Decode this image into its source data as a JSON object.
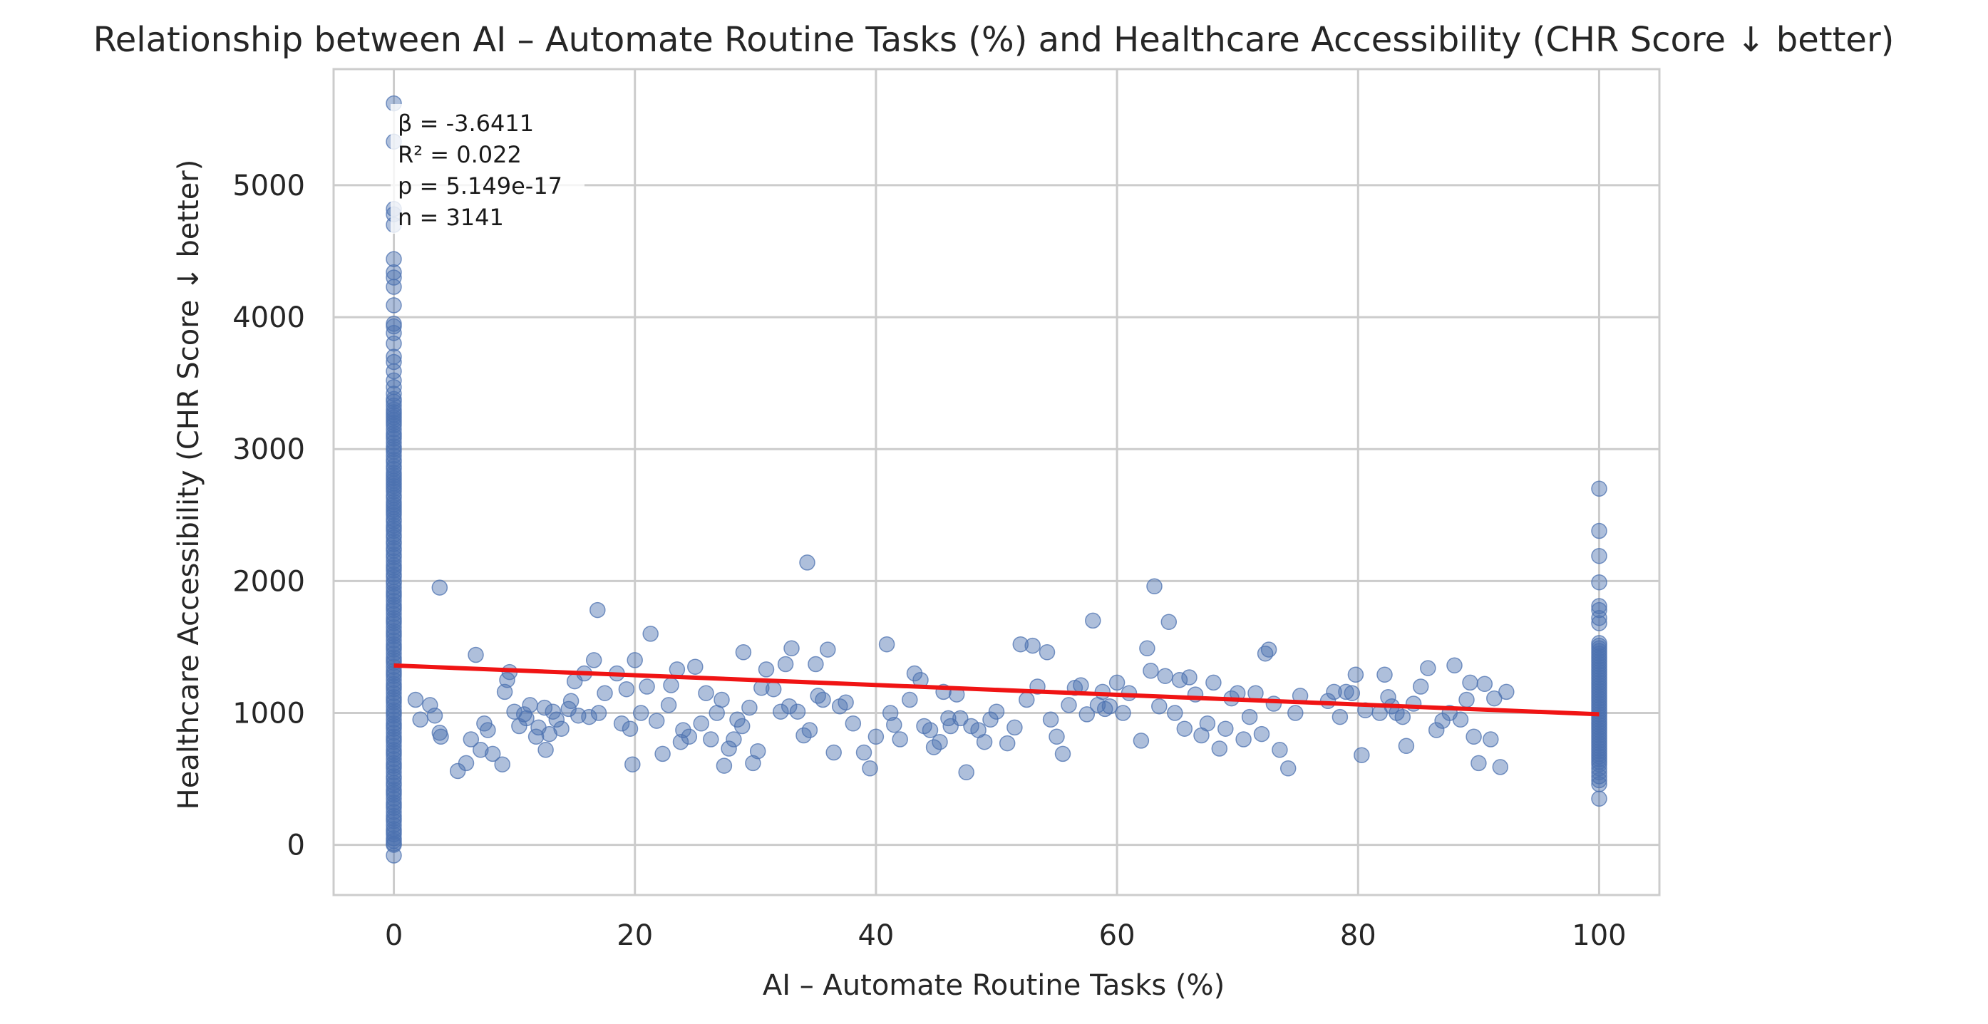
{
  "chart_data": {
    "type": "scatter",
    "title": "Relationship between AI – Automate Routine Tasks (%) and Healthcare Accessibility (CHR Score ↓ better)",
    "xlabel": "AI – Automate Routine Tasks (%)",
    "ylabel": "Healthcare Accessibility (CHR Score ↓ better)",
    "xlim": [
      -5,
      105
    ],
    "ylim": [
      -380,
      5880
    ],
    "xticks": [
      "0",
      "20",
      "40",
      "60",
      "80",
      "100"
    ],
    "yticks": [
      "0",
      "1000",
      "2000",
      "3000",
      "4000",
      "5000"
    ],
    "grid": true,
    "stats": [
      "β = -3.6411",
      "R² = 0.022",
      "p = 5.149e-17",
      "n = 3141"
    ],
    "regression": {
      "x": [
        0,
        100
      ],
      "y": [
        1360,
        990
      ],
      "color": "#f01414"
    },
    "point_color": "#4c72b0",
    "points": {
      "x0_y": [
        5620,
        5330,
        4820,
        4780,
        4700,
        4440,
        4340,
        4300,
        4230,
        4090,
        3950,
        3930,
        3880,
        3800,
        3700,
        3660,
        3590,
        3520,
        3470,
        3420,
        3380,
        3360,
        3330,
        3300,
        3280,
        3260,
        3240,
        3220,
        3200,
        3180,
        3150,
        3120,
        3100,
        3080,
        3050,
        3020,
        3000,
        2980,
        2950,
        2920,
        2900,
        2870,
        2850,
        2820,
        2800,
        2780,
        2760,
        2740,
        2720,
        2700,
        2680,
        2650,
        2630,
        2600,
        2580,
        2560,
        2540,
        2520,
        2500,
        2470,
        2450,
        2420,
        2400,
        2380,
        2350,
        2330,
        2300,
        2280,
        2250,
        2230,
        2200,
        2180,
        2150,
        2120,
        2100,
        2080,
        2050,
        2030,
        2000,
        1980,
        1950,
        1920,
        1900,
        1880,
        1850,
        1820,
        1800,
        1780,
        1750,
        1720,
        1700,
        1680,
        1650,
        1620,
        1600,
        1580,
        1550,
        1520,
        1500,
        1480,
        1450,
        1420,
        1400,
        1380,
        1350,
        1320,
        1300,
        1280,
        1250,
        1220,
        1200,
        1180,
        1150,
        1120,
        1100,
        1080,
        1050,
        1020,
        1000,
        980,
        950,
        920,
        900,
        880,
        850,
        820,
        800,
        780,
        750,
        720,
        700,
        680,
        650,
        620,
        600,
        580,
        550,
        520,
        500,
        470,
        450,
        420,
        400,
        380,
        350,
        320,
        300,
        280,
        250,
        220,
        200,
        180,
        150,
        120,
        100,
        80,
        50,
        30,
        10,
        0,
        -80
      ],
      "x100_y": [
        2700,
        2380,
        2190,
        1990,
        1810,
        1780,
        1720,
        1680,
        1530,
        1510,
        1490,
        1470,
        1450,
        1430,
        1410,
        1390,
        1370,
        1350,
        1330,
        1310,
        1290,
        1270,
        1250,
        1230,
        1210,
        1190,
        1170,
        1150,
        1130,
        1110,
        1090,
        1070,
        1050,
        1030,
        1010,
        990,
        970,
        950,
        930,
        910,
        890,
        870,
        850,
        830,
        810,
        790,
        770,
        750,
        730,
        710,
        690,
        670,
        650,
        630,
        610,
        580,
        550,
        520,
        490,
        460,
        350
      ],
      "mid": [
        [
          1.8,
          1100
        ],
        [
          2.2,
          950
        ],
        [
          3.0,
          1060
        ],
        [
          3.4,
          980
        ],
        [
          3.8,
          850
        ],
        [
          3.9,
          820
        ],
        [
          3.8,
          1950
        ],
        [
          5.3,
          560
        ],
        [
          6.0,
          620
        ],
        [
          6.4,
          800
        ],
        [
          6.8,
          1440
        ],
        [
          7.2,
          720
        ],
        [
          7.5,
          920
        ],
        [
          7.8,
          870
        ],
        [
          8.2,
          690
        ],
        [
          9.0,
          610
        ],
        [
          9.2,
          1160
        ],
        [
          9.4,
          1250
        ],
        [
          9.6,
          1310
        ],
        [
          10.0,
          1010
        ],
        [
          10.4,
          900
        ],
        [
          10.8,
          990
        ],
        [
          11.0,
          960
        ],
        [
          11.3,
          1060
        ],
        [
          11.8,
          820
        ],
        [
          12.0,
          890
        ],
        [
          12.5,
          1040
        ],
        [
          12.6,
          720
        ],
        [
          12.9,
          840
        ],
        [
          13.2,
          1010
        ],
        [
          13.5,
          950
        ],
        [
          13.9,
          880
        ],
        [
          14.5,
          1030
        ],
        [
          14.7,
          1090
        ],
        [
          15.0,
          1240
        ],
        [
          15.3,
          980
        ],
        [
          15.8,
          1300
        ],
        [
          16.2,
          970
        ],
        [
          16.6,
          1400
        ],
        [
          16.9,
          1780
        ],
        [
          17.0,
          1000
        ],
        [
          17.5,
          1150
        ],
        [
          18.5,
          1300
        ],
        [
          18.9,
          920
        ],
        [
          19.3,
          1180
        ],
        [
          19.6,
          880
        ],
        [
          19.8,
          610
        ],
        [
          20.0,
          1400
        ],
        [
          20.5,
          1000
        ],
        [
          21.0,
          1200
        ],
        [
          21.3,
          1600
        ],
        [
          21.8,
          940
        ],
        [
          22.3,
          690
        ],
        [
          22.8,
          1060
        ],
        [
          23.0,
          1210
        ],
        [
          23.5,
          1330
        ],
        [
          23.8,
          780
        ],
        [
          24.0,
          870
        ],
        [
          24.5,
          820
        ],
        [
          25.0,
          1350
        ],
        [
          25.5,
          920
        ],
        [
          25.9,
          1150
        ],
        [
          26.3,
          800
        ],
        [
          26.8,
          1000
        ],
        [
          27.2,
          1100
        ],
        [
          27.4,
          600
        ],
        [
          27.8,
          730
        ],
        [
          28.2,
          800
        ],
        [
          28.5,
          950
        ],
        [
          28.9,
          900
        ],
        [
          29.0,
          1460
        ],
        [
          29.5,
          1040
        ],
        [
          29.8,
          620
        ],
        [
          30.2,
          710
        ],
        [
          30.5,
          1190
        ],
        [
          30.9,
          1330
        ],
        [
          31.5,
          1180
        ],
        [
          32.1,
          1010
        ],
        [
          32.5,
          1370
        ],
        [
          32.8,
          1050
        ],
        [
          33.0,
          1490
        ],
        [
          33.5,
          1010
        ],
        [
          34.0,
          830
        ],
        [
          34.3,
          2140
        ],
        [
          34.5,
          870
        ],
        [
          35.0,
          1370
        ],
        [
          35.2,
          1130
        ],
        [
          35.6,
          1100
        ],
        [
          36.0,
          1480
        ],
        [
          36.5,
          700
        ],
        [
          37.0,
          1050
        ],
        [
          37.5,
          1080
        ],
        [
          38.1,
          920
        ],
        [
          39.0,
          700
        ],
        [
          39.5,
          580
        ],
        [
          40.0,
          820
        ],
        [
          40.9,
          1520
        ],
        [
          41.2,
          1000
        ],
        [
          41.5,
          910
        ],
        [
          42.0,
          800
        ],
        [
          42.8,
          1100
        ],
        [
          43.2,
          1300
        ],
        [
          43.7,
          1250
        ],
        [
          44.0,
          900
        ],
        [
          44.5,
          870
        ],
        [
          44.8,
          740
        ],
        [
          45.3,
          780
        ],
        [
          45.6,
          1160
        ],
        [
          46.0,
          960
        ],
        [
          46.2,
          900
        ],
        [
          46.7,
          1140
        ],
        [
          47.0,
          960
        ],
        [
          47.5,
          550
        ],
        [
          47.9,
          900
        ],
        [
          48.5,
          870
        ],
        [
          49.0,
          780
        ],
        [
          49.5,
          950
        ],
        [
          50.0,
          1010
        ],
        [
          50.9,
          770
        ],
        [
          51.5,
          890
        ],
        [
          52.0,
          1520
        ],
        [
          52.5,
          1100
        ],
        [
          53.0,
          1510
        ],
        [
          53.4,
          1200
        ],
        [
          54.2,
          1460
        ],
        [
          54.5,
          950
        ],
        [
          55.0,
          820
        ],
        [
          55.5,
          690
        ],
        [
          56.0,
          1060
        ],
        [
          56.5,
          1190
        ],
        [
          57.0,
          1210
        ],
        [
          57.5,
          990
        ],
        [
          58.0,
          1700
        ],
        [
          58.4,
          1060
        ],
        [
          58.8,
          1160
        ],
        [
          59.0,
          1030
        ],
        [
          59.4,
          1050
        ],
        [
          60.0,
          1230
        ],
        [
          60.5,
          1000
        ],
        [
          61.0,
          1150
        ],
        [
          62.0,
          790
        ],
        [
          62.5,
          1490
        ],
        [
          62.8,
          1320
        ],
        [
          63.1,
          1960
        ],
        [
          63.5,
          1050
        ],
        [
          64.0,
          1280
        ],
        [
          64.3,
          1690
        ],
        [
          64.8,
          1000
        ],
        [
          65.2,
          1250
        ],
        [
          65.6,
          880
        ],
        [
          66.0,
          1270
        ],
        [
          66.5,
          1140
        ],
        [
          67.0,
          830
        ],
        [
          67.5,
          920
        ],
        [
          68.0,
          1230
        ],
        [
          68.5,
          730
        ],
        [
          69.0,
          880
        ],
        [
          69.5,
          1110
        ],
        [
          70.0,
          1150
        ],
        [
          70.5,
          800
        ],
        [
          71.0,
          970
        ],
        [
          71.5,
          1150
        ],
        [
          72.0,
          840
        ],
        [
          72.3,
          1450
        ],
        [
          72.6,
          1480
        ],
        [
          73.0,
          1070
        ],
        [
          73.5,
          720
        ],
        [
          74.2,
          580
        ],
        [
          74.8,
          1000
        ],
        [
          75.2,
          1130
        ],
        [
          77.5,
          1090
        ],
        [
          78.0,
          1160
        ],
        [
          78.5,
          970
        ],
        [
          79.0,
          1160
        ],
        [
          79.5,
          1150
        ],
        [
          79.8,
          1290
        ],
        [
          80.3,
          680
        ],
        [
          80.6,
          1020
        ],
        [
          81.8,
          1000
        ],
        [
          82.2,
          1290
        ],
        [
          82.5,
          1120
        ],
        [
          82.8,
          1050
        ],
        [
          83.2,
          1000
        ],
        [
          83.7,
          970
        ],
        [
          84.0,
          750
        ],
        [
          84.6,
          1070
        ],
        [
          85.2,
          1200
        ],
        [
          85.8,
          1340
        ],
        [
          86.5,
          870
        ],
        [
          87.0,
          940
        ],
        [
          87.6,
          1000
        ],
        [
          88.0,
          1360
        ],
        [
          88.5,
          950
        ],
        [
          89.0,
          1100
        ],
        [
          89.3,
          1230
        ],
        [
          89.6,
          820
        ],
        [
          90.0,
          620
        ],
        [
          90.5,
          1220
        ],
        [
          91.0,
          800
        ],
        [
          91.3,
          1110
        ],
        [
          91.8,
          590
        ],
        [
          92.3,
          1160
        ]
      ]
    }
  }
}
